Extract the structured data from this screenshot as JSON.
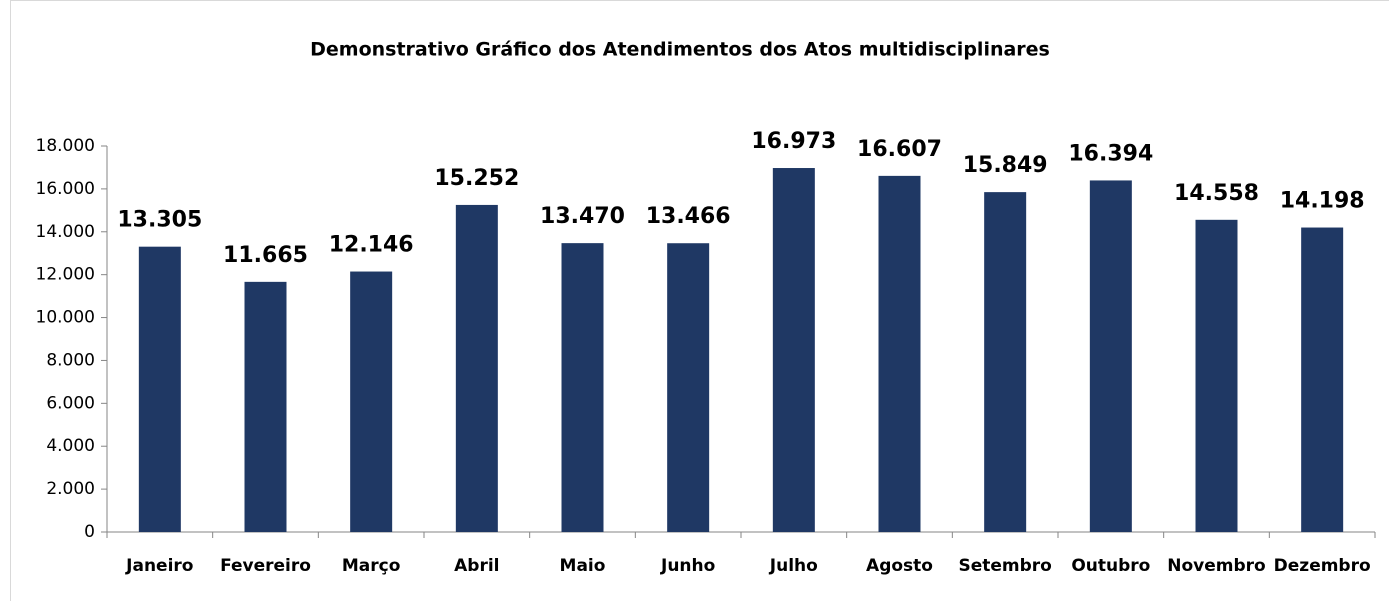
{
  "chart_data": {
    "type": "bar",
    "title": "Demonstrativo Gráfico dos Atendimentos dos Atos multidisciplinares",
    "categories": [
      "Janeiro",
      "Fevereiro",
      "Março",
      "Abril",
      "Maio",
      "Junho",
      "Julho",
      "Agosto",
      "Setembro",
      "Outubro",
      "Novembro",
      "Dezembro"
    ],
    "values": [
      13305,
      11665,
      12146,
      15252,
      13470,
      13466,
      16973,
      16607,
      15849,
      16394,
      14558,
      14198
    ],
    "value_labels": [
      "13.305",
      "11.665",
      "12.146",
      "15.252",
      "13.470",
      "13.466",
      "16.973",
      "16.607",
      "15.849",
      "16.394",
      "14.558",
      "14.198"
    ],
    "color": "#1f3864",
    "ylim": [
      0,
      18000
    ],
    "yticks": [
      0,
      {
        "value": 2000,
        "label": "2.000"
      },
      {
        "value": 4000,
        "label": "4.000"
      },
      {
        "value": 6000,
        "label": "6.000"
      },
      {
        "value": 8000,
        "label": "8.000"
      },
      {
        "value": 10000,
        "label": "10.000"
      },
      {
        "value": 12000,
        "label": "12.000"
      },
      {
        "value": 14000,
        "label": "14.000"
      },
      {
        "value": 16000,
        "label": "16.000"
      },
      {
        "value": 18000,
        "label": "18.000"
      }
    ],
    "grid": false
  }
}
